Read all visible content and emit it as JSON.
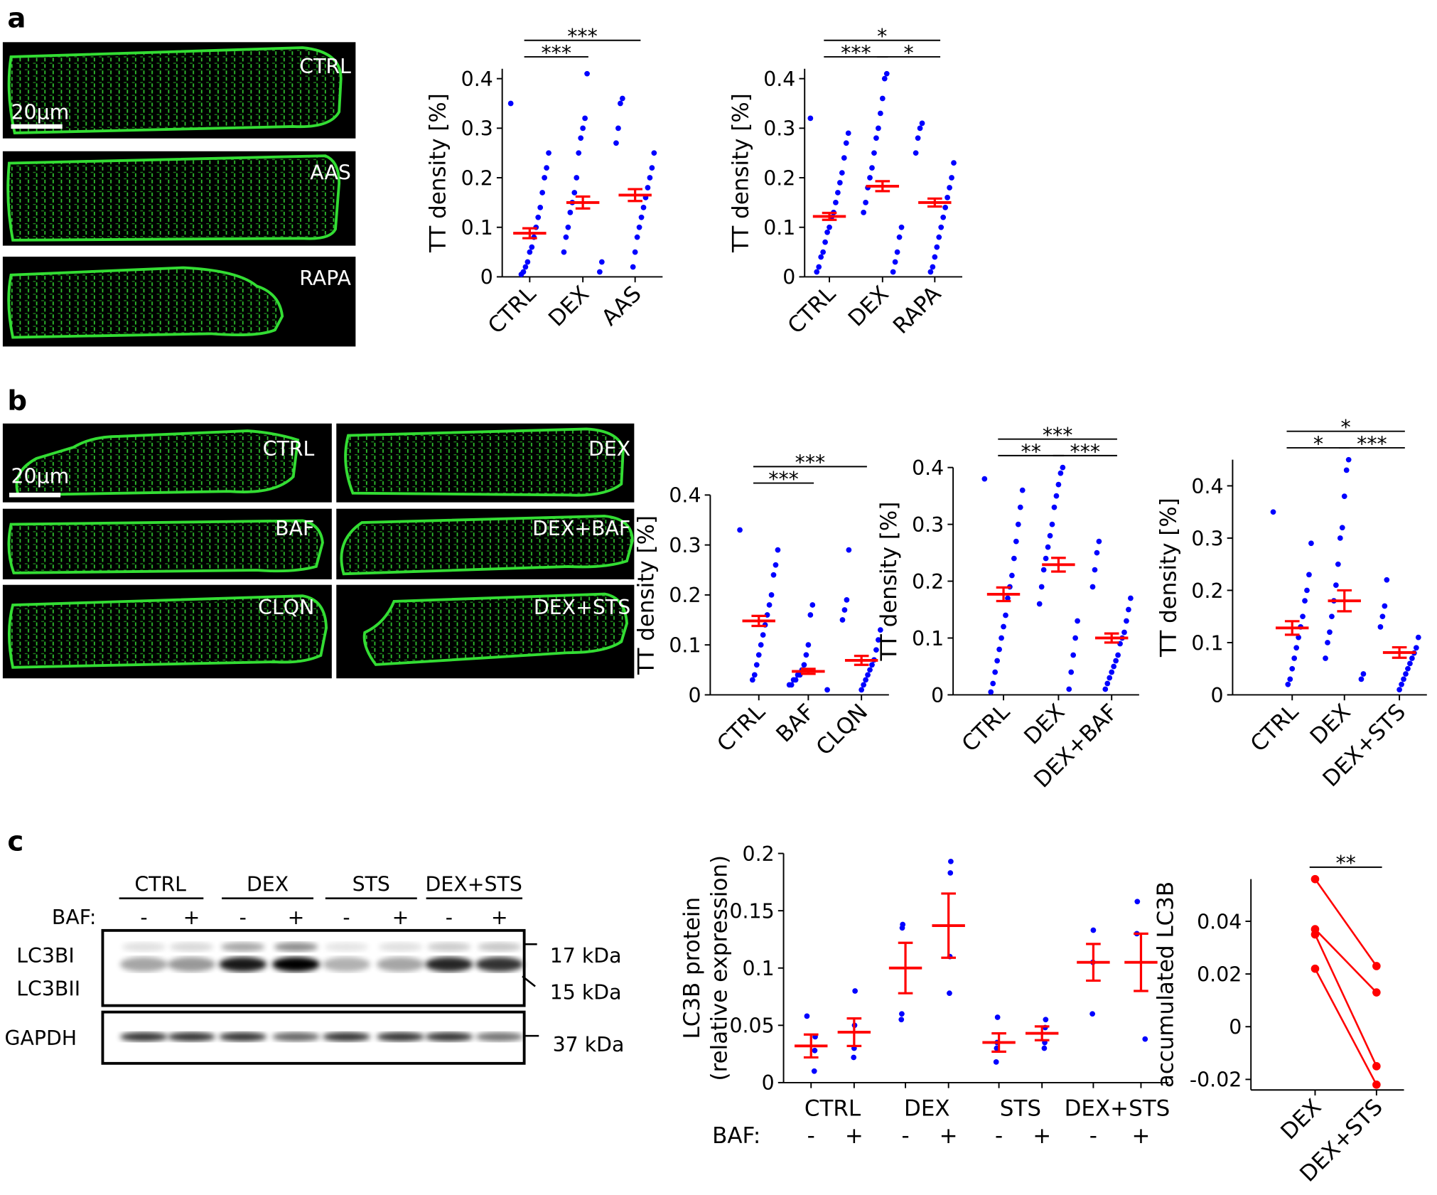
{
  "panel_labels": [
    "a",
    "b",
    "c"
  ],
  "micrographs": {
    "a": {
      "labels": [
        "CTRL",
        "AAS",
        "RAPA"
      ],
      "scale_bar": "20μm"
    },
    "b": {
      "labels": [
        "CTRL",
        "DEX",
        "BAF",
        "DEX+BAF",
        "CLQN",
        "DEX+STS"
      ],
      "scale_bar": "20μm"
    }
  },
  "blot": {
    "lane_groups": [
      "CTRL",
      "DEX",
      "STS",
      "DEX+STS"
    ],
    "baf_label": "BAF:",
    "baf_states": [
      "-",
      "+"
    ],
    "bands": [
      "LC3BI",
      "LC3BII"
    ],
    "loading": "GAPDH",
    "markers": [
      "17 kDa",
      "15 kDa",
      "37 kDa"
    ]
  },
  "chart_data": [
    {
      "type": "strip",
      "y_label": "TT density [%]",
      "categories": [
        "CTRL",
        "DEX",
        "AAS"
      ],
      "ylim": [
        0,
        0.42
      ],
      "yticks": [
        0,
        0.1,
        0.2,
        0.3,
        0.4
      ],
      "point_color": "#0000ff",
      "mean_color": "#ff0000",
      "groups": [
        {
          "points": [
            0.35,
            0.25,
            0.22,
            0.2,
            0.17,
            0.14,
            0.12,
            0.1,
            0.08,
            0.06,
            0.05,
            0.03,
            0.02,
            0.01,
            0.005
          ],
          "mean": 0.088,
          "sem": 0.01
        },
        {
          "points": [
            0.41,
            0.32,
            0.3,
            0.28,
            0.25,
            0.2,
            0.17,
            0.15,
            0.13,
            0.1,
            0.08,
            0.05,
            0.03,
            0.01
          ],
          "mean": 0.15,
          "sem": 0.012
        },
        {
          "points": [
            0.36,
            0.35,
            0.3,
            0.27,
            0.25,
            0.22,
            0.2,
            0.18,
            0.16,
            0.14,
            0.12,
            0.1,
            0.08,
            0.05,
            0.02
          ],
          "mean": 0.165,
          "sem": 0.012
        }
      ],
      "significance": [
        {
          "from": 0,
          "to": 1,
          "label": "***"
        },
        {
          "from": 0,
          "to": 2,
          "label": "***"
        }
      ]
    },
    {
      "type": "strip",
      "y_label": "TT density [%]",
      "categories": [
        "CTRL",
        "DEX",
        "RAPA"
      ],
      "ylim": [
        0,
        0.42
      ],
      "yticks": [
        0,
        0.1,
        0.2,
        0.3,
        0.4
      ],
      "point_color": "#0000ff",
      "mean_color": "#ff0000",
      "groups": [
        {
          "points": [
            0.32,
            0.29,
            0.27,
            0.24,
            0.21,
            0.19,
            0.17,
            0.15,
            0.13,
            0.12,
            0.1,
            0.09,
            0.07,
            0.05,
            0.04,
            0.02,
            0.01
          ],
          "mean": 0.122,
          "sem": 0.007
        },
        {
          "points": [
            0.41,
            0.4,
            0.36,
            0.33,
            0.3,
            0.28,
            0.25,
            0.22,
            0.2,
            0.18,
            0.15,
            0.13,
            0.1,
            0.08,
            0.05,
            0.03,
            0.01
          ],
          "mean": 0.183,
          "sem": 0.01
        },
        {
          "points": [
            0.31,
            0.3,
            0.28,
            0.25,
            0.23,
            0.2,
            0.18,
            0.16,
            0.14,
            0.12,
            0.1,
            0.08,
            0.06,
            0.04,
            0.02,
            0.01
          ],
          "mean": 0.15,
          "sem": 0.008
        }
      ],
      "significance": [
        {
          "from": 0,
          "to": 1,
          "label": "***"
        },
        {
          "from": 1,
          "to": 2,
          "label": "*"
        },
        {
          "from": 0,
          "to": 2,
          "label": "*"
        }
      ]
    },
    {
      "type": "strip",
      "y_label": "TT density [%]",
      "categories": [
        "CTRL",
        "BAF",
        "CLQN"
      ],
      "ylim": [
        0,
        0.4
      ],
      "yticks": [
        0,
        0.1,
        0.2,
        0.3,
        0.4
      ],
      "point_color": "#0000ff",
      "mean_color": "#ff0000",
      "groups": [
        {
          "points": [
            0.33,
            0.29,
            0.26,
            0.24,
            0.2,
            0.18,
            0.16,
            0.14,
            0.12,
            0.1,
            0.08,
            0.06,
            0.04,
            0.03
          ],
          "mean": 0.148,
          "sem": 0.01
        },
        {
          "points": [
            0.18,
            0.16,
            0.1,
            0.08,
            0.06,
            0.05,
            0.04,
            0.04,
            0.03,
            0.03,
            0.02,
            0.02,
            0.01
          ],
          "mean": 0.047,
          "sem": 0.005
        },
        {
          "points": [
            0.29,
            0.19,
            0.17,
            0.15,
            0.13,
            0.11,
            0.09,
            0.07,
            0.06,
            0.05,
            0.04,
            0.03,
            0.02,
            0.01
          ],
          "mean": 0.069,
          "sem": 0.009
        }
      ],
      "significance": [
        {
          "from": 0,
          "to": 1,
          "label": "***"
        },
        {
          "from": 0,
          "to": 2,
          "label": "***"
        }
      ]
    },
    {
      "type": "strip",
      "y_label": "TT density [%]",
      "categories": [
        "CTRL",
        "DEX",
        "DEX+BAF"
      ],
      "ylim": [
        0,
        0.4
      ],
      "yticks": [
        0,
        0.1,
        0.2,
        0.3,
        0.4
      ],
      "point_color": "#0000ff",
      "mean_color": "#ff0000",
      "groups": [
        {
          "points": [
            0.38,
            0.36,
            0.33,
            0.3,
            0.27,
            0.24,
            0.21,
            0.19,
            0.17,
            0.14,
            0.12,
            0.1,
            0.08,
            0.06,
            0.04,
            0.02,
            0.005
          ],
          "mean": 0.177,
          "sem": 0.012
        },
        {
          "points": [
            0.4,
            0.39,
            0.37,
            0.35,
            0.33,
            0.3,
            0.28,
            0.26,
            0.24,
            0.22,
            0.19,
            0.16,
            0.13,
            0.1,
            0.07,
            0.04,
            0.01
          ],
          "mean": 0.229,
          "sem": 0.012
        },
        {
          "points": [
            0.27,
            0.25,
            0.22,
            0.19,
            0.17,
            0.15,
            0.13,
            0.11,
            0.1,
            0.09,
            0.07,
            0.06,
            0.05,
            0.04,
            0.03,
            0.02,
            0.01
          ],
          "mean": 0.1,
          "sem": 0.008
        }
      ],
      "significance": [
        {
          "from": 0,
          "to": 1,
          "label": "**"
        },
        {
          "from": 1,
          "to": 2,
          "label": "***"
        },
        {
          "from": 0,
          "to": 2,
          "label": "***"
        }
      ]
    },
    {
      "type": "strip",
      "y_label": "TT density [%]",
      "categories": [
        "CTRL",
        "DEX",
        "DEX+STS"
      ],
      "ylim": [
        0,
        0.45
      ],
      "yticks": [
        0,
        0.1,
        0.2,
        0.3,
        0.4
      ],
      "point_color": "#0000ff",
      "mean_color": "#ff0000",
      "groups": [
        {
          "points": [
            0.35,
            0.29,
            0.23,
            0.2,
            0.18,
            0.15,
            0.13,
            0.11,
            0.09,
            0.07,
            0.05,
            0.03,
            0.02
          ],
          "mean": 0.128,
          "sem": 0.013
        },
        {
          "points": [
            0.45,
            0.43,
            0.38,
            0.32,
            0.3,
            0.25,
            0.21,
            0.18,
            0.15,
            0.12,
            0.1,
            0.07,
            0.04,
            0.03
          ],
          "mean": 0.18,
          "sem": 0.02
        },
        {
          "points": [
            0.22,
            0.17,
            0.15,
            0.13,
            0.11,
            0.09,
            0.08,
            0.07,
            0.06,
            0.05,
            0.04,
            0.03,
            0.02,
            0.01
          ],
          "mean": 0.081,
          "sem": 0.01
        }
      ],
      "significance": [
        {
          "from": 0,
          "to": 1,
          "label": "*"
        },
        {
          "from": 1,
          "to": 2,
          "label": "***"
        },
        {
          "from": 0,
          "to": 2,
          "label": "*"
        }
      ]
    },
    {
      "type": "strip",
      "y_label": [
        "LC3B protein",
        "(relative expression)"
      ],
      "categories": [
        "CTRL",
        "DEX",
        "STS",
        "DEX+STS"
      ],
      "sub_label": "BAF:",
      "subcategories": [
        "-",
        "+"
      ],
      "ylim": [
        0,
        0.2
      ],
      "yticks": [
        0,
        0.05,
        0.1,
        0.15,
        0.2
      ],
      "point_color": "#0000ff",
      "mean_color": "#ff0000",
      "groups": [
        {
          "points": [
            0.058,
            0.04,
            0.028,
            0.01
          ],
          "mean": 0.032,
          "sem": 0.01
        },
        {
          "points": [
            0.08,
            0.05,
            0.03,
            0.022
          ],
          "mean": 0.044,
          "sem": 0.012
        },
        {
          "points": [
            0.138,
            0.135,
            0.06,
            0.055
          ],
          "mean": 0.1,
          "sem": 0.022
        },
        {
          "points": [
            0.193,
            0.183,
            0.11,
            0.078
          ],
          "mean": 0.137,
          "sem": 0.028
        },
        {
          "points": [
            0.057,
            0.035,
            0.03,
            0.018
          ],
          "mean": 0.035,
          "sem": 0.008
        },
        {
          "points": [
            0.055,
            0.048,
            0.035,
            0.03
          ],
          "mean": 0.043,
          "sem": 0.006
        },
        {
          "points": [
            0.133,
            0.105,
            0.06
          ],
          "mean": 0.105,
          "sem": 0.016
        },
        {
          "points": [
            0.158,
            0.13,
            0.038
          ],
          "mean": 0.105,
          "sem": 0.025
        }
      ]
    },
    {
      "type": "paired",
      "y_label": "accumulated LC3B",
      "categories": [
        "DEX",
        "DEX+STS"
      ],
      "ylim": [
        -0.024,
        0.056
      ],
      "yticks": [
        -0.02,
        0,
        0.02,
        0.04
      ],
      "color": "#ff0000",
      "series": [
        {
          "values": [
            0.056,
            0.023
          ]
        },
        {
          "values": [
            0.037,
            0.013
          ]
        },
        {
          "values": [
            0.035,
            -0.015
          ]
        },
        {
          "values": [
            0.022,
            -0.022
          ]
        }
      ],
      "significance": [
        {
          "from": 0,
          "to": 1,
          "label": "**"
        }
      ]
    }
  ]
}
